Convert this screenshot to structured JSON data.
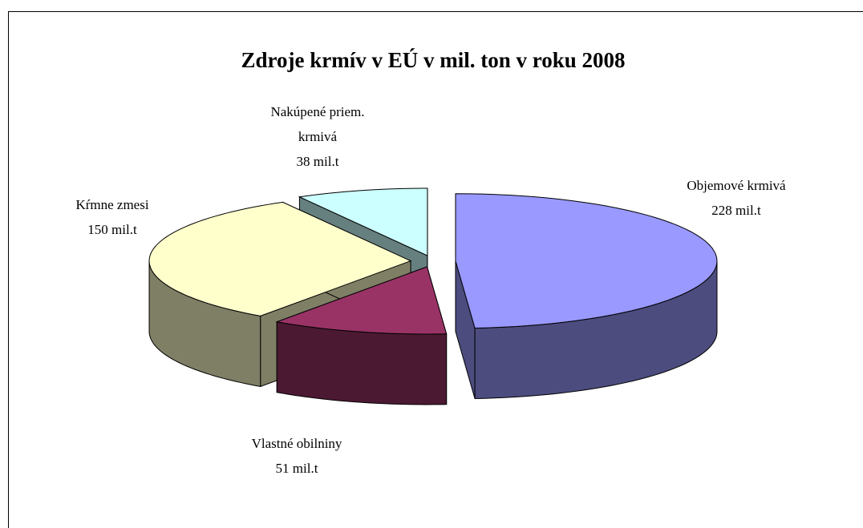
{
  "chart_data": {
    "type": "pie",
    "title": "Zdroje krmív v EÚ v mil. ton v roku 2008",
    "categories": [
      "Objemové krmivá",
      "Vlastné obilniny",
      "Kŕmne zmesi",
      "Nakúpené priem. krmivá"
    ],
    "values": [
      228,
      51,
      150,
      38
    ],
    "value_labels": [
      "228 mil.t",
      "51 mil.t",
      "150 mil.t",
      "38 mil.t"
    ],
    "colors": [
      "#9999ff",
      "#993366",
      "#ffffcc",
      "#ccffff"
    ]
  }
}
